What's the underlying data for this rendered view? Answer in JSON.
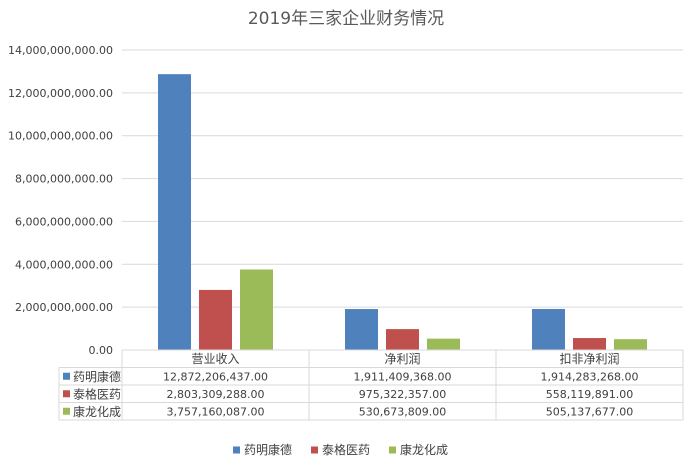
{
  "chart_data": {
    "type": "bar",
    "title": "2019年三家企业财务情况",
    "xlabel": "",
    "ylabel": "",
    "categories": [
      "营业收入",
      "净利润",
      "扣非净利润"
    ],
    "series": [
      {
        "name": "药明康德",
        "color": "#4F81BD",
        "values": [
          12872206437.0,
          1911409368.0,
          1914283268.0
        ],
        "labels": [
          "12,872,206,437.00",
          "1,911,409,368.00",
          "1,914,283,268.00"
        ]
      },
      {
        "name": "泰格医药",
        "color": "#C0504D",
        "values": [
          2803309288.0,
          975322357.0,
          558119891.0
        ],
        "labels": [
          "2,803,309,288.00",
          "975,322,357.00",
          "558,119,891.00"
        ]
      },
      {
        "name": "康龙化成",
        "color": "#9BBB59",
        "values": [
          3757160087.0,
          530673809.0,
          505137677.0
        ],
        "labels": [
          "3,757,160,087.00",
          "530,673,809.00",
          "505,137,677.00"
        ]
      }
    ],
    "ylim": [
      0,
      14000000000
    ],
    "yticks": [
      0,
      2000000000,
      4000000000,
      6000000000,
      8000000000,
      10000000000,
      12000000000,
      14000000000
    ],
    "ytick_labels": [
      "0.00",
      "2,000,000,000.00",
      "4,000,000,000.00",
      "6,000,000,000.00",
      "8,000,000,000.00",
      "10,000,000,000.00",
      "12,000,000,000.00",
      "14,000,000,000.00"
    ],
    "grid": true,
    "legend_position": "bottom",
    "data_table": true
  }
}
